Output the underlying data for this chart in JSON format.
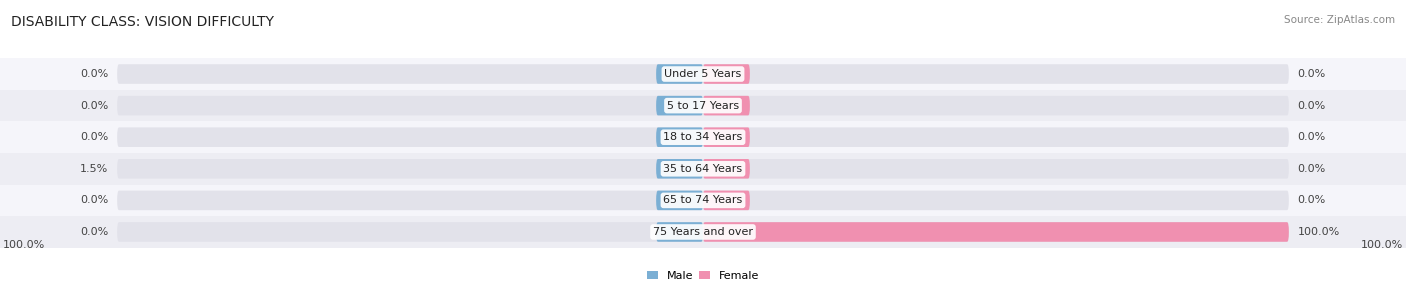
{
  "title": "DISABILITY CLASS: VISION DIFFICULTY",
  "source": "Source: ZipAtlas.com",
  "categories": [
    "Under 5 Years",
    "5 to 17 Years",
    "18 to 34 Years",
    "35 to 64 Years",
    "65 to 74 Years",
    "75 Years and over"
  ],
  "male_values": [
    0.0,
    0.0,
    0.0,
    1.5,
    0.0,
    0.0
  ],
  "female_values": [
    0.0,
    0.0,
    0.0,
    0.0,
    0.0,
    100.0
  ],
  "male_color": "#7bafd4",
  "female_color": "#f090b0",
  "male_label": "Male",
  "female_label": "Female",
  "bar_bg_color": "#e2e2ea",
  "row_bg_even": "#ededf3",
  "row_bg_odd": "#f5f5fa",
  "max_value": 100.0,
  "min_bar_display": 8.0,
  "title_fontsize": 10,
  "label_fontsize": 8,
  "tick_fontsize": 8,
  "source_fontsize": 7.5
}
